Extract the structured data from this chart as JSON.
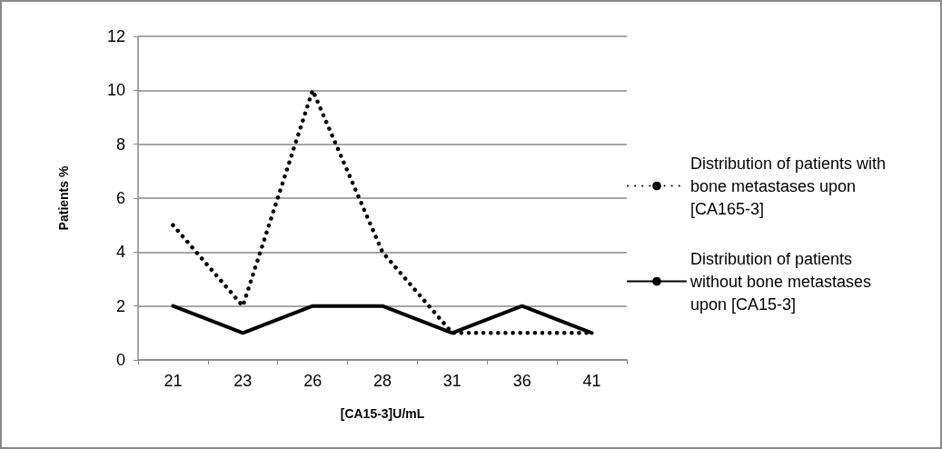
{
  "chart_data": {
    "type": "line",
    "xlabel": "[CA15-3]U/mL",
    "ylabel": "Patients %",
    "categories": [
      "21",
      "23",
      "26",
      "28",
      "31",
      "36",
      "41"
    ],
    "series": [
      {
        "name": "Distribution of patients with bone metastases upon [CA165-3]",
        "color": "#000000",
        "line_style": "dotted",
        "values": [
          5,
          2,
          10,
          4,
          1,
          1,
          1
        ]
      },
      {
        "name": "Distribution of patients without bone metastases upon [CA15-3]",
        "color": "#000000",
        "line_style": "solid",
        "values": [
          2,
          1,
          2,
          2,
          1,
          2,
          1
        ]
      }
    ],
    "ylim": [
      0,
      12
    ],
    "yticks": [
      0,
      2,
      4,
      6,
      8,
      10,
      12
    ],
    "grid": "y",
    "legend": "right",
    "marker": "none"
  }
}
